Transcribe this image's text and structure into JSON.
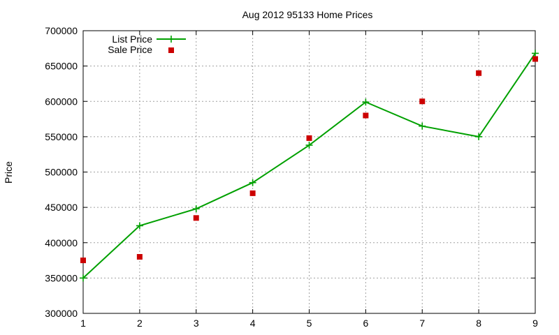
{
  "chart_data": {
    "type": "line",
    "title": "Aug 2012 95133 Home Prices",
    "xlabel": "",
    "ylabel": "Price",
    "xlim": [
      1,
      9
    ],
    "ylim": [
      300000,
      700000
    ],
    "xticks": [
      1,
      2,
      3,
      4,
      5,
      6,
      7,
      8,
      9
    ],
    "yticks": [
      300000,
      350000,
      400000,
      450000,
      500000,
      550000,
      600000,
      650000,
      700000
    ],
    "grid": true,
    "legend_position": "top-left",
    "x": [
      1,
      2,
      3,
      4,
      5,
      6,
      7,
      8,
      9
    ],
    "series": [
      {
        "name": "List Price",
        "style": "line-with-plus-markers",
        "color": "#00a000",
        "values": [
          350000,
          424000,
          448000,
          485000,
          538000,
          599000,
          565000,
          550000,
          668000
        ]
      },
      {
        "name": "Sale Price",
        "style": "square-markers",
        "color": "#cc0000",
        "values": [
          375000,
          380000,
          435000,
          470000,
          548000,
          580000,
          600000,
          640000,
          660000
        ]
      }
    ]
  }
}
